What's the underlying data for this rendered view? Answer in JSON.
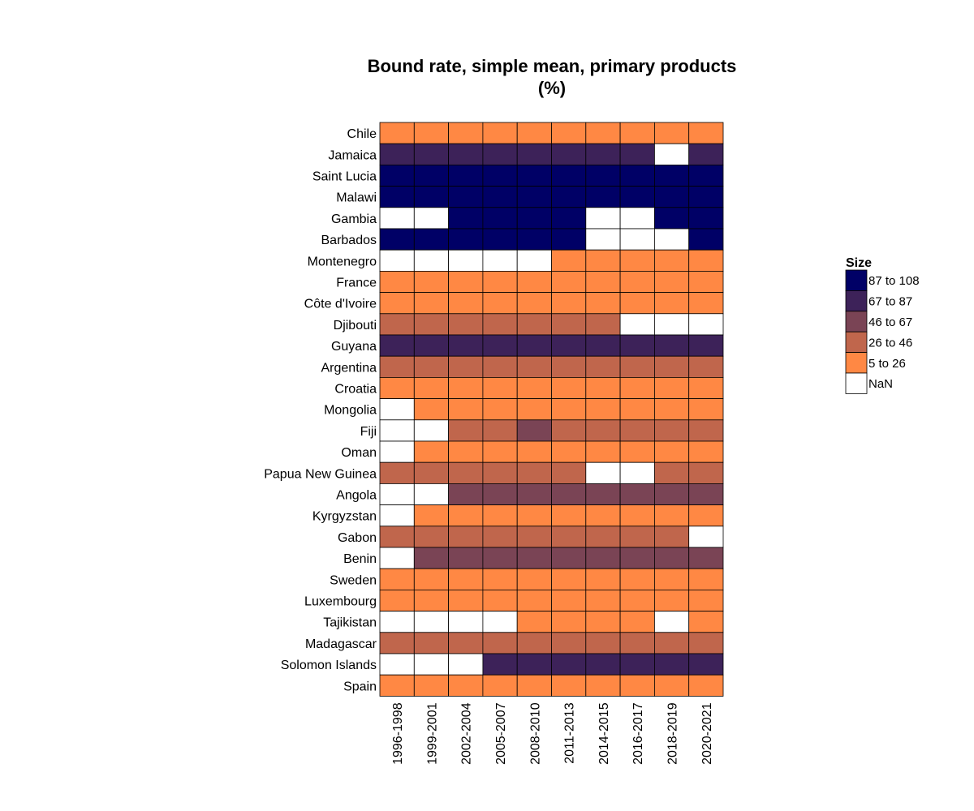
{
  "chart_data": {
    "type": "heatmap",
    "title": "Bound rate, simple mean, primary products",
    "subtitle": "(%)",
    "columns": [
      "1996-1998",
      "1999-2001",
      "2002-2004",
      "2005-2007",
      "2008-2010",
      "2011-2013",
      "2014-2015",
      "2016-2017",
      "2018-2019",
      "2020-2021"
    ],
    "rows": [
      "Chile",
      "Jamaica",
      "Saint Lucia",
      "Malawi",
      "Gambia",
      "Barbados",
      "Montenegro",
      "France",
      "Côte d'Ivoire",
      "Djibouti",
      "Guyana",
      "Argentina",
      "Croatia",
      "Mongolia",
      "Fiji",
      "Oman",
      "Papua New Guinea",
      "Angola",
      "Kyrgyzstan",
      "Gabon",
      "Benin",
      "Sweden",
      "Luxembourg",
      "Tajikistan",
      "Madagascar",
      "Solomon Islands",
      "Spain"
    ],
    "value_bins": [
      "87 to 108",
      "67 to 87",
      "46 to 67",
      "26 to 46",
      "5 to 26",
      "NaN"
    ],
    "bin_colors": [
      "#000066",
      "#3d2259",
      "#7a4455",
      "#c0664c",
      "#ff8844",
      "#ffffff"
    ],
    "cells": [
      [
        "5 to 26",
        "5 to 26",
        "5 to 26",
        "5 to 26",
        "5 to 26",
        "5 to 26",
        "5 to 26",
        "5 to 26",
        "5 to 26",
        "5 to 26"
      ],
      [
        "67 to 87",
        "67 to 87",
        "67 to 87",
        "67 to 87",
        "67 to 87",
        "67 to 87",
        "67 to 87",
        "67 to 87",
        "NaN",
        "67 to 87"
      ],
      [
        "87 to 108",
        "87 to 108",
        "87 to 108",
        "87 to 108",
        "87 to 108",
        "87 to 108",
        "87 to 108",
        "87 to 108",
        "87 to 108",
        "87 to 108"
      ],
      [
        "87 to 108",
        "87 to 108",
        "87 to 108",
        "87 to 108",
        "87 to 108",
        "87 to 108",
        "87 to 108",
        "87 to 108",
        "87 to 108",
        "87 to 108"
      ],
      [
        "NaN",
        "NaN",
        "87 to 108",
        "87 to 108",
        "87 to 108",
        "87 to 108",
        "NaN",
        "NaN",
        "87 to 108",
        "87 to 108"
      ],
      [
        "87 to 108",
        "87 to 108",
        "87 to 108",
        "87 to 108",
        "87 to 108",
        "87 to 108",
        "NaN",
        "NaN",
        "NaN",
        "87 to 108"
      ],
      [
        "NaN",
        "NaN",
        "NaN",
        "NaN",
        "NaN",
        "5 to 26",
        "5 to 26",
        "5 to 26",
        "5 to 26",
        "5 to 26"
      ],
      [
        "5 to 26",
        "5 to 26",
        "5 to 26",
        "5 to 26",
        "5 to 26",
        "5 to 26",
        "5 to 26",
        "5 to 26",
        "5 to 26",
        "5 to 26"
      ],
      [
        "5 to 26",
        "5 to 26",
        "5 to 26",
        "5 to 26",
        "5 to 26",
        "5 to 26",
        "5 to 26",
        "5 to 26",
        "5 to 26",
        "5 to 26"
      ],
      [
        "26 to 46",
        "26 to 46",
        "26 to 46",
        "26 to 46",
        "26 to 46",
        "26 to 46",
        "26 to 46",
        "NaN",
        "NaN",
        "NaN"
      ],
      [
        "67 to 87",
        "67 to 87",
        "67 to 87",
        "67 to 87",
        "67 to 87",
        "67 to 87",
        "67 to 87",
        "67 to 87",
        "67 to 87",
        "67 to 87"
      ],
      [
        "26 to 46",
        "26 to 46",
        "26 to 46",
        "26 to 46",
        "26 to 46",
        "26 to 46",
        "26 to 46",
        "26 to 46",
        "26 to 46",
        "26 to 46"
      ],
      [
        "5 to 26",
        "5 to 26",
        "5 to 26",
        "5 to 26",
        "5 to 26",
        "5 to 26",
        "5 to 26",
        "5 to 26",
        "5 to 26",
        "5 to 26"
      ],
      [
        "NaN",
        "5 to 26",
        "5 to 26",
        "5 to 26",
        "5 to 26",
        "5 to 26",
        "5 to 26",
        "5 to 26",
        "5 to 26",
        "5 to 26"
      ],
      [
        "NaN",
        "NaN",
        "26 to 46",
        "26 to 46",
        "46 to 67",
        "26 to 46",
        "26 to 46",
        "26 to 46",
        "26 to 46",
        "26 to 46"
      ],
      [
        "NaN",
        "5 to 26",
        "5 to 26",
        "5 to 26",
        "5 to 26",
        "5 to 26",
        "5 to 26",
        "5 to 26",
        "5 to 26",
        "5 to 26"
      ],
      [
        "26 to 46",
        "26 to 46",
        "26 to 46",
        "26 to 46",
        "26 to 46",
        "26 to 46",
        "NaN",
        "NaN",
        "26 to 46",
        "26 to 46"
      ],
      [
        "NaN",
        "NaN",
        "46 to 67",
        "46 to 67",
        "46 to 67",
        "46 to 67",
        "46 to 67",
        "46 to 67",
        "46 to 67",
        "46 to 67"
      ],
      [
        "NaN",
        "5 to 26",
        "5 to 26",
        "5 to 26",
        "5 to 26",
        "5 to 26",
        "5 to 26",
        "5 to 26",
        "5 to 26",
        "5 to 26"
      ],
      [
        "26 to 46",
        "26 to 46",
        "26 to 46",
        "26 to 46",
        "26 to 46",
        "26 to 46",
        "26 to 46",
        "26 to 46",
        "26 to 46",
        "NaN"
      ],
      [
        "NaN",
        "46 to 67",
        "46 to 67",
        "46 to 67",
        "46 to 67",
        "46 to 67",
        "46 to 67",
        "46 to 67",
        "46 to 67",
        "46 to 67"
      ],
      [
        "5 to 26",
        "5 to 26",
        "5 to 26",
        "5 to 26",
        "5 to 26",
        "5 to 26",
        "5 to 26",
        "5 to 26",
        "5 to 26",
        "5 to 26"
      ],
      [
        "5 to 26",
        "5 to 26",
        "5 to 26",
        "5 to 26",
        "5 to 26",
        "5 to 26",
        "5 to 26",
        "5 to 26",
        "5 to 26",
        "5 to 26"
      ],
      [
        "NaN",
        "NaN",
        "NaN",
        "NaN",
        "5 to 26",
        "5 to 26",
        "5 to 26",
        "5 to 26",
        "NaN",
        "5 to 26"
      ],
      [
        "26 to 46",
        "26 to 46",
        "26 to 46",
        "26 to 46",
        "26 to 46",
        "26 to 46",
        "26 to 46",
        "26 to 46",
        "26 to 46",
        "26 to 46"
      ],
      [
        "NaN",
        "NaN",
        "NaN",
        "67 to 87",
        "67 to 87",
        "67 to 87",
        "67 to 87",
        "67 to 87",
        "67 to 87",
        "67 to 87"
      ],
      [
        "5 to 26",
        "5 to 26",
        "5 to 26",
        "5 to 26",
        "5 to 26",
        "5 to 26",
        "5 to 26",
        "5 to 26",
        "5 to 26",
        "5 to 26"
      ]
    ],
    "legend": {
      "title": "Size",
      "items": [
        "87 to 108",
        "67 to 87",
        "46 to 67",
        "26 to 46",
        "5 to 26",
        "NaN"
      ],
      "position": "right"
    },
    "grid": false
  }
}
